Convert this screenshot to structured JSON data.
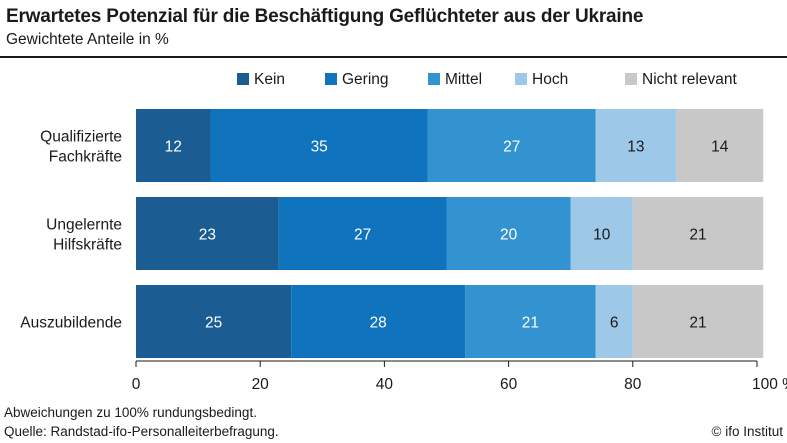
{
  "header": {
    "title": "Erwartetes Potenzial für die Beschäftigung Geflüchteter aus der Ukraine",
    "subtitle": "Gewichtete Anteile in %"
  },
  "footer": {
    "note_line1": "Abweichungen zu 100% rundungsbedingt.",
    "note_line2": "Quelle: Randstad-ifo-Personalleiterbefragung.",
    "credit": "© ifo Institut"
  },
  "chart_data": {
    "type": "bar",
    "orientation": "horizontal",
    "stacked": true,
    "categories": [
      [
        "Qualifizierte",
        "Fachkräfte"
      ],
      [
        "Ungelernte",
        "Hilfskräfte"
      ],
      [
        "Auszubildende"
      ]
    ],
    "series": [
      {
        "name": "Kein",
        "values": [
          12,
          23,
          25
        ],
        "color": "#1b5c92",
        "label_color": "#ffffff"
      },
      {
        "name": "Gering",
        "values": [
          35,
          27,
          28
        ],
        "color": "#0f73bd",
        "label_color": "#ffffff"
      },
      {
        "name": "Mittel",
        "values": [
          27,
          20,
          21
        ],
        "color": "#3392d0",
        "label_color": "#ffffff"
      },
      {
        "name": "Hoch",
        "values": [
          13,
          10,
          6
        ],
        "color": "#9dc8e8",
        "label_color": "#1a1a1a"
      },
      {
        "name": "Nicht relevant",
        "values": [
          14,
          21,
          21
        ],
        "color": "#c8c8c8",
        "label_color": "#1a1a1a"
      }
    ],
    "xlim": [
      0,
      100
    ],
    "xticks": [
      "0",
      "20",
      "40",
      "60",
      "80",
      "100 %"
    ],
    "legend_position": "top-right",
    "grid": false
  }
}
